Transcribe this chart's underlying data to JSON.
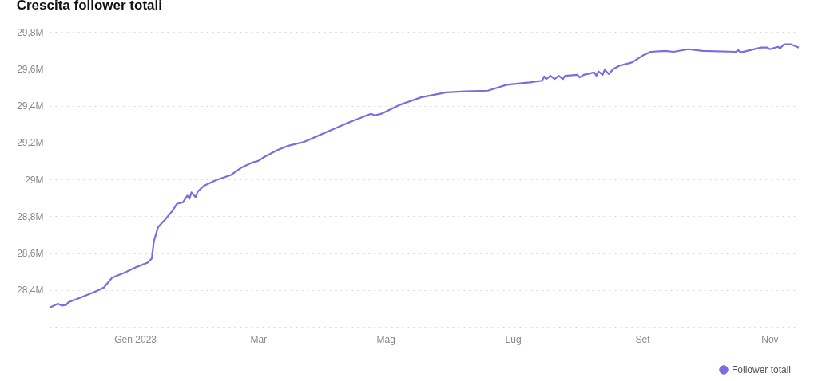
{
  "chart_data": {
    "type": "line",
    "title": "Crescita follower totali",
    "x": [
      "2022-11-21",
      "2022-11-25",
      "2022-11-27",
      "2022-11-29",
      "2022-11-30",
      "2022-12-03",
      "2022-12-08",
      "2022-12-13",
      "2022-12-17",
      "2022-12-21",
      "2022-12-27",
      "2023-01-02",
      "2023-01-07",
      "2023-01-09",
      "2023-01-10",
      "2023-01-12",
      "2023-01-15",
      "2023-01-19",
      "2023-01-21",
      "2023-01-24",
      "2023-01-26",
      "2023-01-27",
      "2023-01-28",
      "2023-01-30",
      "2023-01-31",
      "2023-02-03",
      "2023-02-09",
      "2023-02-16",
      "2023-02-21",
      "2023-02-26",
      "2023-03-01",
      "2023-03-04",
      "2023-03-10",
      "2023-03-15",
      "2023-03-23",
      "2023-04-02",
      "2023-04-14",
      "2023-04-24",
      "2023-04-26",
      "2023-04-29",
      "2023-05-08",
      "2023-05-18",
      "2023-05-30",
      "2023-06-08",
      "2023-06-19",
      "2023-06-23",
      "2023-06-28",
      "2023-07-09",
      "2023-07-15",
      "2023-07-16",
      "2023-07-17",
      "2023-07-19",
      "2023-07-21",
      "2023-07-23",
      "2023-07-25",
      "2023-07-26",
      "2023-08-01",
      "2023-08-02",
      "2023-08-04",
      "2023-08-09",
      "2023-08-10",
      "2023-08-11",
      "2023-08-13",
      "2023-08-14",
      "2023-08-16",
      "2023-08-18",
      "2023-08-21",
      "2023-08-27",
      "2023-09-01",
      "2023-09-05",
      "2023-09-12",
      "2023-09-16",
      "2023-09-23",
      "2023-09-30",
      "2023-10-16",
      "2023-10-17",
      "2023-10-18",
      "2023-10-28",
      "2023-10-31",
      "2023-11-01",
      "2023-11-05",
      "2023-11-06",
      "2023-11-08",
      "2023-11-11",
      "2023-11-13",
      "2023-11-15"
    ],
    "series": [
      {
        "name": "Follower totali",
        "color": "#7b6ce0",
        "values": [
          28304000,
          28325000,
          28315000,
          28319000,
          28333000,
          28346000,
          28369000,
          28391000,
          28413000,
          28467000,
          28494000,
          28526000,
          28548000,
          28571000,
          28665000,
          28741000,
          28777000,
          28831000,
          28867000,
          28876000,
          28912000,
          28894000,
          28929000,
          28903000,
          28934000,
          28965000,
          28997000,
          29024000,
          29064000,
          29091000,
          29100000,
          29122000,
          29158000,
          29181000,
          29203000,
          29253000,
          29311000,
          29356000,
          29347000,
          29356000,
          29405000,
          29445000,
          29472000,
          29477000,
          29481000,
          29495000,
          29513000,
          29526000,
          29535000,
          29558000,
          29544000,
          29562000,
          29544000,
          29562000,
          29544000,
          29562000,
          29567000,
          29553000,
          29567000,
          29580000,
          29562000,
          29585000,
          29567000,
          29594000,
          29571000,
          29598000,
          29616000,
          29634000,
          29670000,
          29692000,
          29697000,
          29692000,
          29706000,
          29697000,
          29692000,
          29701000,
          29688000,
          29715000,
          29715000,
          29706000,
          29719000,
          29710000,
          29733000,
          29733000,
          29724000,
          29715000
        ]
      }
    ],
    "xlim": [
      "2022-11-21",
      "2023-11-15"
    ],
    "xticks": [
      {
        "value": "2023-01-01",
        "label": "Gen 2023"
      },
      {
        "value": "2023-03-01",
        "label": "Mar"
      },
      {
        "value": "2023-05-01",
        "label": "Mag"
      },
      {
        "value": "2023-07-01",
        "label": "Lug"
      },
      {
        "value": "2023-09-01",
        "label": "Set"
      },
      {
        "value": "2023-11-01",
        "label": "Nov"
      }
    ],
    "ylim": [
      28200000,
      29800000
    ],
    "yticks": [
      {
        "value": 28200000,
        "label": null
      },
      {
        "value": 28400000,
        "label": "28,4M"
      },
      {
        "value": 28600000,
        "label": "28,6M"
      },
      {
        "value": 28800000,
        "label": "28,8M"
      },
      {
        "value": 29000000,
        "label": "29M"
      },
      {
        "value": 29200000,
        "label": "29,2M"
      },
      {
        "value": 29400000,
        "label": "29,4M"
      },
      {
        "value": 29600000,
        "label": "29,6M"
      },
      {
        "value": 29800000,
        "label": "29,8M"
      }
    ],
    "grid": "y",
    "legend": "bottom right",
    "marker": "none",
    "line_style": "solid"
  }
}
